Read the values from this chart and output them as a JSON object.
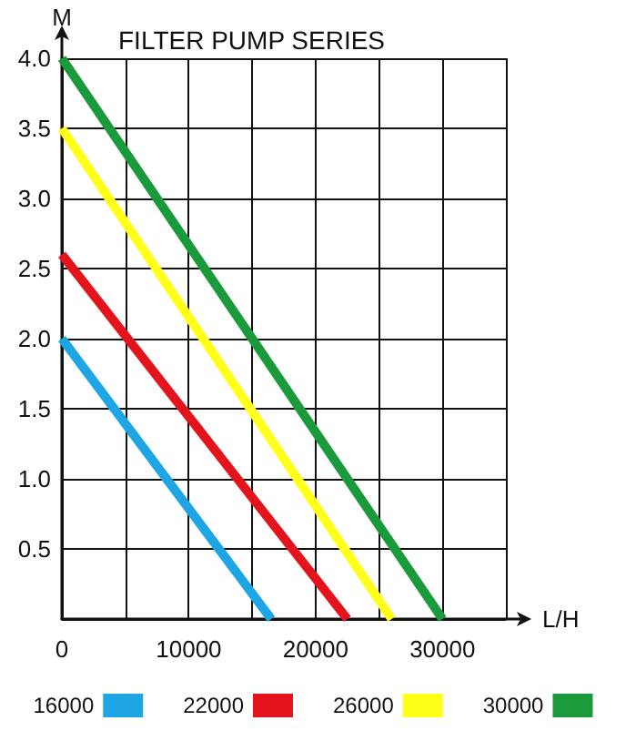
{
  "chart_data": {
    "type": "line",
    "title": "FILTER PUMP SERIES",
    "xlabel": "L/H",
    "ylabel": "M",
    "xlim": [
      0,
      35000
    ],
    "xticks": [
      {
        "value": 0,
        "label": "0"
      },
      {
        "value": 5000,
        "label": null
      },
      10000,
      {
        "value": 15000,
        "label": null
      },
      20000,
      {
        "value": 25000,
        "label": null
      },
      30000,
      {
        "value": 35000,
        "label": null
      }
    ],
    "ylim": [
      0,
      4
    ],
    "yticks": [
      {
        "value": 0,
        "label": null
      },
      {
        "value": 0.5,
        "label": "0.5"
      },
      {
        "value": 1,
        "label": "1.0"
      },
      {
        "value": 1.5,
        "label": "1.5"
      },
      {
        "value": 2,
        "label": "2.0"
      },
      {
        "value": 2.5,
        "label": "2.5"
      },
      {
        "value": 3,
        "label": "3.0"
      },
      {
        "value": 3.5,
        "label": "3.5"
      },
      {
        "value": 4,
        "label": "4.0"
      }
    ],
    "grid": true,
    "legend": "bottom",
    "marker": "none",
    "line_style": "solid",
    "series": [
      {
        "name": "16000",
        "color": "#1ea5e3",
        "x": [
          0,
          16500
        ],
        "values": [
          2.0,
          0
        ]
      },
      {
        "name": "22000",
        "color": "#e3141c",
        "x": [
          0,
          22500
        ],
        "values": [
          2.6,
          0
        ]
      },
      {
        "name": "26000",
        "color": "#ffff1a",
        "x": [
          0,
          26000
        ],
        "values": [
          3.5,
          0
        ]
      },
      {
        "name": "30000",
        "color": "#1a9a3a",
        "x": [
          0,
          30000
        ],
        "values": [
          4.0,
          0
        ]
      }
    ]
  }
}
